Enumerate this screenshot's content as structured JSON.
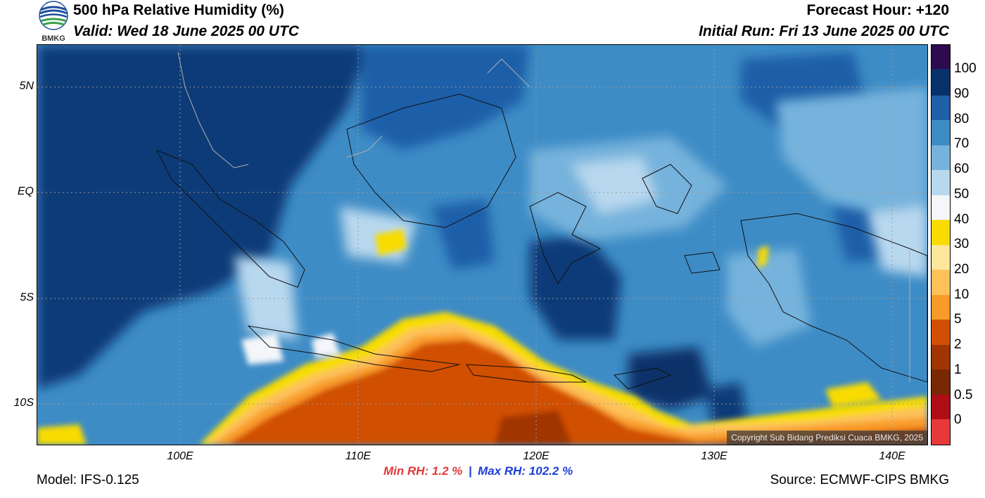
{
  "header": {
    "title": "500 hPa Relative Humidity (%)",
    "valid": "Valid: Wed 18 June 2025 00 UTC",
    "forecast_hour": "Forecast Hour: +120",
    "initial_run": "Initial Run: Fri 13 June 2025 00 UTC",
    "logo_text": "BMKG"
  },
  "map": {
    "lat_labels": [
      "5N",
      "EQ",
      "5S",
      "10S"
    ],
    "lon_labels": [
      "100E",
      "110E",
      "120E",
      "130E",
      "140E"
    ],
    "copyright": "Copyright Sub Bidang Prediksi Cuaca BMKG, 2025"
  },
  "colorbar": {
    "labels": [
      "100",
      "90",
      "80",
      "70",
      "60",
      "50",
      "40",
      "30",
      "20",
      "10",
      "5",
      "2",
      "1",
      "0.5",
      "0"
    ],
    "colors": [
      "#2e0a4f",
      "#08306b",
      "#1f5fa8",
      "#3e8cc6",
      "#76b3dc",
      "#b8d8ee",
      "#f4f6f9",
      "#f8dc00",
      "#fce79a",
      "#fdc15a",
      "#f99b29",
      "#d14f02",
      "#a03403",
      "#7a2704",
      "#b00e17",
      "#e8393a"
    ]
  },
  "stats": {
    "min": "Min RH:   1.2 %",
    "separator": "|",
    "max": "Max RH: 102.2 %",
    "min_color": "#e03a3a",
    "max_color": "#1f3fd6"
  },
  "footer": {
    "model": "Model: IFS-0.125",
    "source": "Source: ECMWF-CIPS BMKG"
  }
}
